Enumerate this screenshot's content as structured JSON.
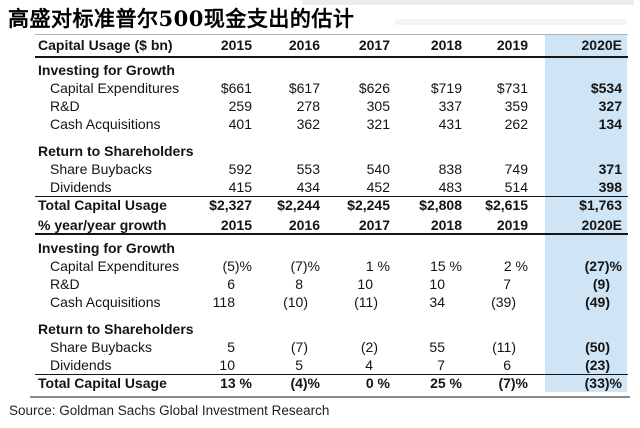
{
  "title": "高盛对标准普尔500现金支出的估计",
  "source_line": "Source: Goldman Sachs Global Investment Research",
  "colors": {
    "highlight_2020e": "#cfe4f5"
  },
  "chart_data": [
    {
      "type": "table",
      "header_label": "Capital Usage ($ bn)",
      "unit": "dollars",
      "columns": [
        "2015",
        "2016",
        "2017",
        "2018",
        "2019",
        "2020E"
      ],
      "highlight_column": "2020E",
      "groups": [
        {
          "title": "Investing for Growth",
          "rows": [
            {
              "label": "Capital Expenditures",
              "values": [
                "$661",
                "$617",
                "$626",
                "$719",
                "$731",
                "$534"
              ]
            },
            {
              "label": "R&D",
              "values": [
                "259",
                "278",
                "305",
                "337",
                "359",
                "327"
              ]
            },
            {
              "label": "Cash Acquisitions",
              "values": [
                "401",
                "362",
                "321",
                "431",
                "262",
                "134"
              ]
            }
          ]
        },
        {
          "title": "Return to Shareholders",
          "rows": [
            {
              "label": "Share Buybacks",
              "values": [
                "592",
                "553",
                "540",
                "838",
                "749",
                "371"
              ]
            },
            {
              "label": "Dividends",
              "values": [
                "415",
                "434",
                "452",
                "483",
                "514",
                "398"
              ]
            }
          ]
        }
      ],
      "total": {
        "label": "Total Capital Usage",
        "values": [
          "$2,327",
          "$2,244",
          "$2,245",
          "$2,808",
          "$2,615",
          "$1,763"
        ]
      }
    },
    {
      "type": "table",
      "header_label": "% year/year growth",
      "unit": "percent",
      "columns": [
        "2015",
        "2016",
        "2017",
        "2018",
        "2019",
        "2020E"
      ],
      "highlight_column": "2020E",
      "groups": [
        {
          "title": "Investing for Growth",
          "rows": [
            {
              "label": "Capital Expenditures",
              "values": [
                "(5)%",
                "(7)%",
                "1 %",
                "15 %",
                "2 %",
                "(27)%"
              ]
            },
            {
              "label": "R&D",
              "values": [
                "6",
                "8",
                "10",
                "10",
                "7",
                "(9)"
              ]
            },
            {
              "label": "Cash Acquisitions",
              "values": [
                "118",
                "(10)",
                "(11)",
                "34",
                "(39)",
                "(49)"
              ]
            }
          ]
        },
        {
          "title": "Return to Shareholders",
          "rows": [
            {
              "label": "Share Buybacks",
              "values": [
                "5",
                "(7)",
                "(2)",
                "55",
                "(11)",
                "(50)"
              ]
            },
            {
              "label": "Dividends",
              "values": [
                "10",
                "5",
                "4",
                "7",
                "6",
                "(23)"
              ]
            }
          ]
        }
      ],
      "total": {
        "label": "Total Capital Usage",
        "values": [
          "13 %",
          "(4)%",
          "0 %",
          "25 %",
          "(7)%",
          "(33)%"
        ]
      }
    }
  ]
}
